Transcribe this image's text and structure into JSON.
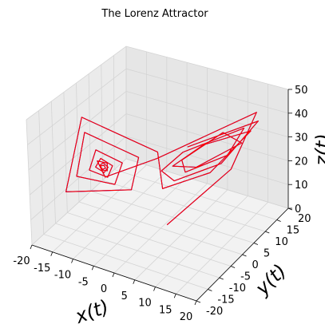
{
  "chart_data": {
    "type": "line",
    "title": "The Lorenz Attractor",
    "xlabel": "x(t)",
    "ylabel": "y(t)",
    "zlabel": "z(t)",
    "xlim": [
      -20,
      20
    ],
    "ylim": [
      -20,
      20
    ],
    "zlim": [
      0,
      50
    ],
    "xticks": [
      "-20",
      "-15",
      "-10",
      "-5",
      "0",
      "5",
      "10",
      "15",
      "20"
    ],
    "yticks": [
      "-20",
      "-15",
      "-10",
      "-5",
      "0",
      "5",
      "10",
      "15",
      "20"
    ],
    "zticks": [
      "0",
      "10",
      "20",
      "30",
      "40",
      "50"
    ],
    "grid": true,
    "series": [
      {
        "color": "#0000ff",
        "points": [
          [
            1.0,
            1.0,
            1.0
          ],
          [
            8.8,
            14.9,
            15.4
          ],
          [
            16.6,
            12.3,
            44.7
          ],
          [
            2.9,
            -6.1,
            34.1
          ],
          [
            -7.2,
            -10.5,
            25.6
          ],
          [
            -9.8,
            -9.2,
            29.8
          ],
          [
            -8.4,
            -7.5,
            28.2
          ],
          [
            -7.9,
            -8.4,
            26.1
          ],
          [
            -8.6,
            -9.4,
            26.9
          ],
          [
            -9.1,
            -9.1,
            28.1
          ],
          [
            -8.7,
            -8.3,
            27.8
          ],
          [
            -8.3,
            -8.4,
            26.9
          ],
          [
            -8.6,
            -9.2,
            27.0
          ],
          [
            -9.2,
            -9.3,
            28.3
          ],
          [
            -9.0,
            -8.2,
            28.6
          ],
          [
            -8.1,
            -7.7,
            26.9
          ],
          [
            -8.2,
            -9.2,
            25.9
          ],
          [
            -9.6,
            -10.3,
            28.3
          ],
          [
            -9.6,
            -8.1,
            30.0
          ],
          [
            -7.6,
            -6.7,
            26.9
          ],
          [
            -7.5,
            -9.0,
            24.2
          ],
          [
            -10.1,
            -12.0,
            28.2
          ],
          [
            -10.8,
            -8.0,
            32.8
          ],
          [
            -6.5,
            -4.5,
            26.8
          ],
          [
            -6.2,
            -8.3,
            21.4
          ],
          [
            -11.2,
            -15.4,
            27.9
          ],
          [
            -13.3,
            -8.2,
            38.9
          ],
          [
            -4.4,
            -1.3,
            27.4
          ],
          [
            -3.6,
            -5.9,
            18.6
          ],
          [
            -11.7,
            -19.1,
            24.5
          ],
          [
            -15.4,
            -5.7,
            42.2
          ],
          [
            -1.8,
            2.2,
            28.0
          ],
          [
            -0.4,
            1.7,
            14.3
          ],
          [
            6.1,
            10.7,
            16.3
          ],
          [
            13.7,
            14.9,
            33.7
          ],
          [
            9.2,
            2.5,
            35.7
          ],
          [
            2.4,
            1.2,
            25.1
          ],
          [
            4.5,
            7.6,
            20.4
          ],
          [
            11.4,
            15.0,
            27.5
          ],
          [
            11.6,
            6.7,
            38.5
          ],
          [
            4.5,
            1.5,
            28.3
          ],
          [
            3.4,
            4.8,
            20.2
          ],
          [
            8.7,
            13.6,
            22.3
          ],
          [
            14.1,
            11.3,
            37.9
          ],
          [
            6.1,
            -0.8,
            33.9
          ],
          [
            0.3,
            0.1,
            23.1
          ],
          [
            1.4,
            3.5,
            16.8
          ],
          [
            7.6,
            12.8,
            19.0
          ],
          [
            15.4,
            15.1,
            38.4
          ],
          [
            7.7,
            -1.6,
            37.3
          ]
        ]
      },
      {
        "color": "#ff0000",
        "points": [
          [
            1.0,
            1.0,
            1.0
          ],
          [
            8.8,
            14.9,
            15.4
          ],
          [
            16.6,
            12.3,
            44.7
          ],
          [
            2.9,
            -6.1,
            34.1
          ],
          [
            -7.2,
            -10.5,
            25.6
          ],
          [
            -9.8,
            -9.2,
            29.8
          ],
          [
            -8.4,
            -7.5,
            28.2
          ],
          [
            -7.9,
            -8.4,
            26.1
          ],
          [
            -8.6,
            -9.4,
            26.9
          ],
          [
            -9.1,
            -9.1,
            28.1
          ],
          [
            -8.7,
            -8.3,
            27.8
          ],
          [
            -8.3,
            -8.4,
            26.9
          ],
          [
            -8.6,
            -9.2,
            27.0
          ],
          [
            -9.2,
            -9.3,
            28.3
          ],
          [
            -9.0,
            -8.2,
            28.6
          ],
          [
            -8.1,
            -7.7,
            26.9
          ],
          [
            -8.2,
            -9.2,
            25.9
          ],
          [
            -9.6,
            -10.3,
            28.3
          ],
          [
            -9.6,
            -8.1,
            30.0
          ],
          [
            -7.6,
            -6.7,
            26.9
          ],
          [
            -7.5,
            -9.0,
            24.2
          ],
          [
            -10.1,
            -12.0,
            28.2
          ],
          [
            -10.8,
            -8.0,
            32.8
          ],
          [
            -6.5,
            -4.5,
            26.8
          ],
          [
            -6.2,
            -8.3,
            21.4
          ],
          [
            -11.2,
            -15.4,
            27.9
          ],
          [
            -13.3,
            -8.2,
            38.9
          ],
          [
            -4.4,
            -1.3,
            27.4
          ],
          [
            -3.6,
            -5.9,
            18.6
          ],
          [
            -11.7,
            -19.1,
            24.5
          ],
          [
            -15.4,
            -5.7,
            42.2
          ],
          [
            -1.8,
            2.2,
            28.0
          ],
          [
            -0.4,
            1.7,
            14.3
          ],
          [
            6.1,
            10.7,
            16.3
          ],
          [
            13.7,
            14.9,
            33.7
          ],
          [
            9.2,
            2.5,
            35.7
          ],
          [
            2.4,
            1.2,
            25.1
          ],
          [
            4.5,
            7.6,
            20.4
          ],
          [
            11.4,
            15.0,
            27.5
          ],
          [
            11.6,
            6.7,
            38.5
          ],
          [
            4.5,
            1.5,
            28.3
          ],
          [
            3.4,
            4.8,
            20.2
          ],
          [
            8.7,
            13.6,
            22.3
          ],
          [
            14.1,
            11.3,
            37.9
          ],
          [
            6.1,
            -0.8,
            33.9
          ],
          [
            0.3,
            0.1,
            23.1
          ],
          [
            1.4,
            3.5,
            16.8
          ],
          [
            7.6,
            12.8,
            19.0
          ],
          [
            15.4,
            15.1,
            38.4
          ],
          [
            7.7,
            -1.6,
            37.3
          ]
        ]
      }
    ]
  }
}
